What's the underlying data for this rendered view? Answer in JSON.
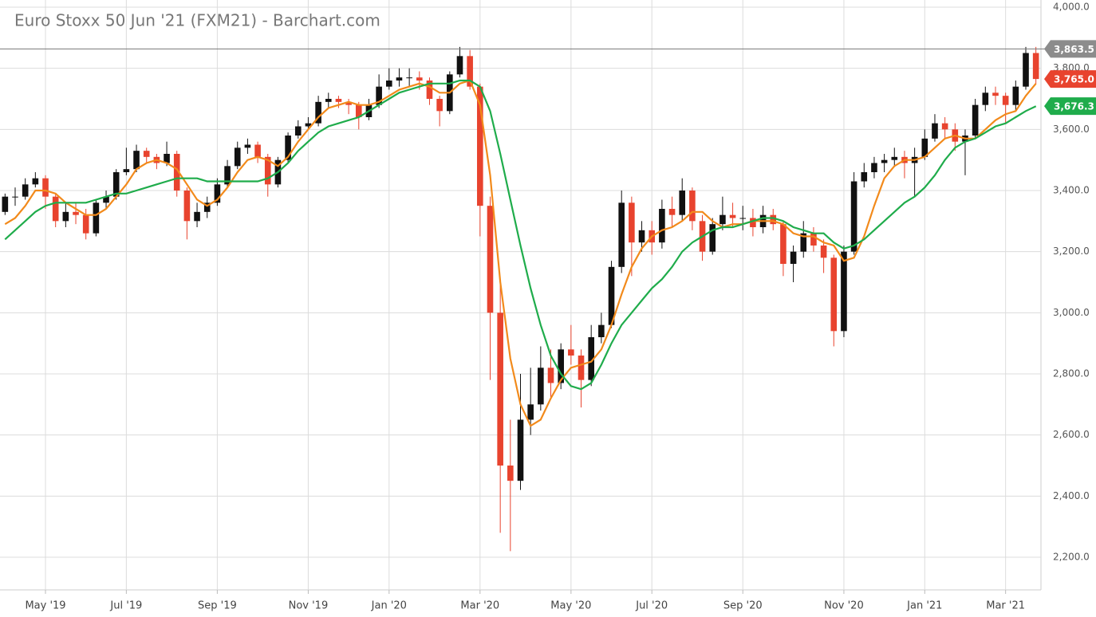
{
  "chart_data": {
    "type": "candlestick",
    "title": "Euro Stoxx 50 Jun '21 (FXM21) - Barchart.com",
    "categories": [
      null,
      null,
      null,
      null,
      "May '19",
      null,
      null,
      null,
      null,
      null,
      null,
      null,
      "Jul '19",
      null,
      null,
      null,
      null,
      null,
      null,
      null,
      null,
      "Sep '19",
      null,
      null,
      null,
      null,
      null,
      null,
      null,
      null,
      "Nov '19",
      null,
      null,
      null,
      null,
      null,
      null,
      null,
      "Jan '20",
      null,
      null,
      null,
      null,
      null,
      null,
      null,
      null,
      "Mar '20",
      null,
      null,
      null,
      null,
      null,
      null,
      null,
      null,
      "May '20",
      null,
      null,
      null,
      null,
      null,
      null,
      null,
      "Jul '20",
      null,
      null,
      null,
      null,
      null,
      null,
      null,
      null,
      "Sep '20",
      null,
      null,
      null,
      null,
      null,
      null,
      null,
      null,
      null,
      "Nov '20",
      null,
      null,
      null,
      null,
      null,
      null,
      null,
      "Jan '21",
      null,
      null,
      null,
      null,
      null,
      null,
      null,
      "Mar '21",
      null,
      null,
      null
    ],
    "open": [
      3330,
      3380,
      3380,
      3420,
      3440,
      3380,
      3300,
      3330,
      3320,
      3260,
      3360,
      3380,
      3460,
      3470,
      3530,
      3510,
      3490,
      3520,
      3400,
      3300,
      3330,
      3360,
      3420,
      3480,
      3540,
      3550,
      3510,
      3420,
      3500,
      3580,
      3610,
      3620,
      3690,
      3700,
      3690,
      3680,
      3640,
      3680,
      3740,
      3760,
      3770,
      3770,
      3760,
      3700,
      3660,
      3780,
      3840,
      3740,
      3350,
      3000,
      2500,
      2450,
      2650,
      2700,
      2820,
      2770,
      2880,
      2860,
      2780,
      2920,
      2960,
      3150,
      3360,
      3230,
      3270,
      3230,
      3340,
      3320,
      3400,
      3300,
      3200,
      3290,
      3320,
      3310,
      3310,
      3280,
      3320,
      3290,
      3160,
      3200,
      3260,
      3220,
      3180,
      2940,
      3200,
      3430,
      3460,
      3490,
      3500,
      3510,
      3490,
      3510,
      3570,
      3620,
      3600,
      3560,
      3580,
      3680,
      3720,
      3710,
      3680,
      3740,
      3850
    ],
    "high": [
      3390,
      3410,
      3440,
      3460,
      3450,
      3390,
      3360,
      3360,
      3340,
      3370,
      3400,
      3470,
      3540,
      3550,
      3540,
      3520,
      3560,
      3530,
      3410,
      3360,
      3380,
      3440,
      3500,
      3560,
      3570,
      3560,
      3520,
      3510,
      3590,
      3630,
      3640,
      3710,
      3720,
      3710,
      3700,
      3690,
      3700,
      3780,
      3800,
      3800,
      3800,
      3790,
      3770,
      3710,
      3790,
      3870,
      3860,
      3750,
      3380,
      3100,
      2650,
      2800,
      2820,
      2890,
      2880,
      2900,
      2960,
      2880,
      2960,
      3000,
      3170,
      3400,
      3380,
      3300,
      3300,
      3370,
      3380,
      3440,
      3410,
      3320,
      3310,
      3380,
      3360,
      3350,
      3340,
      3350,
      3340,
      3300,
      3220,
      3300,
      3280,
      3240,
      3190,
      3220,
      3460,
      3490,
      3510,
      3520,
      3540,
      3530,
      3540,
      3600,
      3650,
      3640,
      3620,
      3600,
      3700,
      3740,
      3740,
      3720,
      3760,
      3870,
      3870
    ],
    "low": [
      3320,
      3350,
      3370,
      3410,
      3340,
      3280,
      3280,
      3290,
      3240,
      3250,
      3340,
      3370,
      3450,
      3460,
      3490,
      3470,
      3480,
      3380,
      3240,
      3280,
      3310,
      3350,
      3410,
      3470,
      3520,
      3490,
      3380,
      3410,
      3490,
      3570,
      3600,
      3610,
      3670,
      3670,
      3650,
      3600,
      3630,
      3670,
      3730,
      3740,
      3740,
      3730,
      3680,
      3610,
      3650,
      3770,
      3730,
      3250,
      2780,
      2280,
      2220,
      2420,
      2600,
      2680,
      2720,
      2750,
      2830,
      2690,
      2760,
      2900,
      2950,
      3130,
      3120,
      3200,
      3190,
      3210,
      3280,
      3300,
      3270,
      3170,
      3190,
      3270,
      3280,
      3270,
      3250,
      3260,
      3270,
      3120,
      3100,
      3180,
      3200,
      3130,
      2890,
      2920,
      3190,
      3410,
      3440,
      3460,
      3480,
      3440,
      3380,
      3500,
      3560,
      3570,
      3530,
      3450,
      3570,
      3660,
      3680,
      3620,
      3660,
      3730,
      3750
    ],
    "close": [
      3380,
      3380,
      3420,
      3440,
      3380,
      3300,
      3330,
      3320,
      3260,
      3360,
      3380,
      3460,
      3470,
      3530,
      3510,
      3490,
      3520,
      3400,
      3300,
      3330,
      3360,
      3420,
      3480,
      3540,
      3550,
      3510,
      3420,
      3500,
      3580,
      3610,
      3620,
      3690,
      3700,
      3690,
      3680,
      3640,
      3680,
      3740,
      3760,
      3770,
      3770,
      3760,
      3700,
      3660,
      3780,
      3840,
      3740,
      3350,
      3000,
      2500,
      2450,
      2650,
      2700,
      2820,
      2770,
      2880,
      2860,
      2780,
      2920,
      2960,
      3150,
      3360,
      3230,
      3270,
      3230,
      3340,
      3320,
      3400,
      3300,
      3200,
      3290,
      3320,
      3310,
      3310,
      3280,
      3320,
      3290,
      3160,
      3200,
      3260,
      3220,
      3180,
      2940,
      3200,
      3430,
      3460,
      3490,
      3500,
      3510,
      3490,
      3510,
      3570,
      3620,
      3600,
      3560,
      3580,
      3680,
      3720,
      3710,
      3680,
      3740,
      3850,
      3765
    ],
    "up_color": "#111111",
    "down_color": "#e8432e",
    "series": [
      {
        "color": "#f28a1b",
        "values": [
          3290,
          3310,
          3350,
          3400,
          3400,
          3390,
          3360,
          3340,
          3320,
          3320,
          3340,
          3380,
          3420,
          3470,
          3490,
          3500,
          3490,
          3470,
          3420,
          3370,
          3350,
          3370,
          3410,
          3460,
          3500,
          3510,
          3500,
          3480,
          3510,
          3560,
          3600,
          3640,
          3670,
          3680,
          3690,
          3680,
          3680,
          3690,
          3710,
          3730,
          3740,
          3750,
          3740,
          3720,
          3720,
          3750,
          3760,
          3680,
          3450,
          3100,
          2850,
          2700,
          2630,
          2650,
          2720,
          2780,
          2820,
          2830,
          2840,
          2880,
          2960,
          3060,
          3150,
          3210,
          3250,
          3270,
          3280,
          3300,
          3330,
          3330,
          3300,
          3280,
          3290,
          3290,
          3300,
          3300,
          3300,
          3290,
          3260,
          3250,
          3250,
          3230,
          3220,
          3170,
          3180,
          3250,
          3350,
          3440,
          3480,
          3500,
          3500,
          3510,
          3540,
          3570,
          3580,
          3570,
          3570,
          3600,
          3630,
          3650,
          3660,
          3710,
          3750
        ]
      },
      {
        "color": "#1fac4b",
        "values": [
          3240,
          3270,
          3300,
          3330,
          3350,
          3360,
          3360,
          3360,
          3360,
          3370,
          3380,
          3390,
          3390,
          3400,
          3410,
          3420,
          3430,
          3440,
          3440,
          3440,
          3430,
          3430,
          3430,
          3430,
          3430,
          3430,
          3440,
          3460,
          3490,
          3530,
          3560,
          3590,
          3610,
          3620,
          3630,
          3640,
          3660,
          3680,
          3700,
          3720,
          3730,
          3740,
          3750,
          3750,
          3750,
          3760,
          3760,
          3740,
          3660,
          3520,
          3370,
          3220,
          3080,
          2960,
          2860,
          2800,
          2760,
          2750,
          2770,
          2830,
          2900,
          2960,
          3000,
          3040,
          3080,
          3110,
          3150,
          3200,
          3230,
          3250,
          3270,
          3280,
          3280,
          3290,
          3300,
          3310,
          3310,
          3300,
          3280,
          3270,
          3260,
          3260,
          3230,
          3210,
          3220,
          3240,
          3270,
          3300,
          3330,
          3360,
          3380,
          3410,
          3450,
          3500,
          3540,
          3560,
          3570,
          3590,
          3610,
          3620,
          3640,
          3660,
          3676
        ]
      }
    ],
    "price_tags": [
      {
        "value": 3863.5,
        "label": "3,863.5",
        "color": "#8c8c8c",
        "line": true
      },
      {
        "value": 3765.0,
        "label": "3,765.0",
        "color": "#e8432e"
      },
      {
        "value": 3676.3,
        "label": "3,676.3",
        "color": "#1fac4b"
      }
    ],
    "ylim": [
      2093,
      4023.5
    ],
    "yticks": [
      {
        "value": 2200,
        "label": "2,200.0"
      },
      {
        "value": 2400,
        "label": "2,400.0"
      },
      {
        "value": 2600,
        "label": "2,600.0"
      },
      {
        "value": 2800,
        "label": "2,800.0"
      },
      {
        "value": 3000,
        "label": "3,000.0"
      },
      {
        "value": 3200,
        "label": "3,200.0"
      },
      {
        "value": 3400,
        "label": "3,400.0"
      },
      {
        "value": 3600,
        "label": "3,600.0"
      },
      {
        "value": 3800,
        "label": "3,800.0"
      },
      {
        "value": 4000,
        "label": "4,000.0"
      }
    ],
    "grid": true
  }
}
